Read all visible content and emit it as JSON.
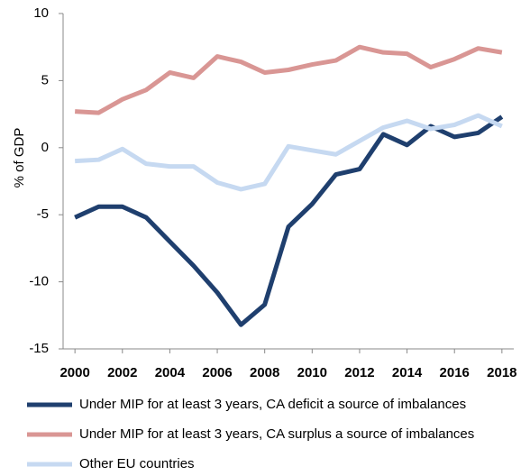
{
  "chart_data": {
    "type": "line",
    "y_label": "% of GDP",
    "x": [
      2000,
      2001,
      2002,
      2003,
      2004,
      2005,
      2006,
      2007,
      2008,
      2009,
      2010,
      2011,
      2012,
      2013,
      2014,
      2015,
      2016,
      2017,
      2018
    ],
    "series": [
      {
        "name": "Under MIP for at least 3 years, CA deficit a source of imbalances",
        "color": "#1f3f6e",
        "values": [
          -5.2,
          -4.4,
          -4.4,
          -5.2,
          -7.0,
          -8.8,
          -10.8,
          -13.2,
          -11.7,
          -5.9,
          -4.2,
          -2.0,
          -1.6,
          1.0,
          0.2,
          1.6,
          0.8,
          1.1,
          2.3
        ]
      },
      {
        "name": "Under MIP for at least 3 years, CA surplus a source of imbalances",
        "color": "#d99694",
        "values": [
          2.7,
          2.6,
          3.6,
          4.3,
          5.6,
          5.2,
          6.8,
          6.4,
          5.6,
          5.8,
          6.2,
          6.5,
          7.5,
          7.1,
          7.0,
          6.0,
          6.6,
          7.4,
          7.1
        ]
      },
      {
        "name": "Other EU countries",
        "color": "#c6d9f1",
        "values": [
          -1.0,
          -0.9,
          -0.1,
          -1.2,
          -1.4,
          -1.4,
          -2.6,
          -3.1,
          -2.7,
          0.1,
          -0.2,
          -0.5,
          0.5,
          1.5,
          2.0,
          1.4,
          1.7,
          2.4,
          1.6
        ]
      }
    ],
    "xlim": [
      1999.5,
      2018.5
    ],
    "xticks": [
      2000,
      2002,
      2004,
      2006,
      2008,
      2010,
      2012,
      2014,
      2016,
      2018
    ],
    "ylim": [
      -15,
      10
    ],
    "yticks": [
      -15,
      -10,
      -5,
      0,
      5,
      10
    ],
    "grid": false,
    "legend": "bottom"
  }
}
